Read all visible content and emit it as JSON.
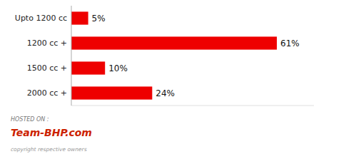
{
  "chart_data": {
    "type": "bar",
    "orientation": "horizontal",
    "categories": [
      "Upto 1200 cc",
      "1200 cc +",
      "1500 cc +",
      "2000 cc +"
    ],
    "values": [
      5,
      61,
      10,
      24
    ],
    "value_labels": [
      "5%",
      "61%",
      "10%",
      "24%"
    ],
    "color": "#ee0000",
    "xlim": [
      0,
      72
    ],
    "xticks": [],
    "data_labels": true,
    "tick_labels": "y",
    "grid": false,
    "annotations": [
      "HOSTED ON :",
      "Team-BHP.com",
      "copyright respective owners"
    ]
  }
}
